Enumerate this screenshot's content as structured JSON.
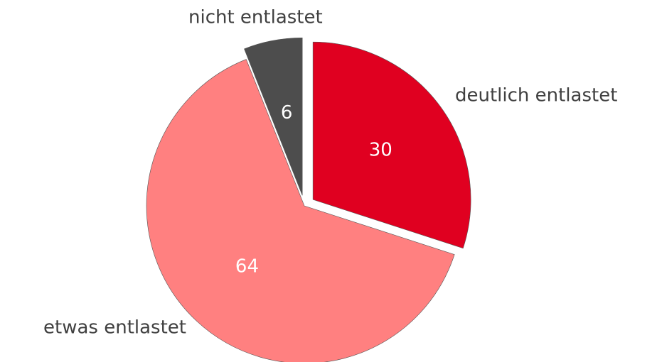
{
  "chart_data": {
    "type": "pie",
    "categories": [
      "deutlich entlastet",
      "etwas entlastet",
      "nicht entlastet"
    ],
    "values": [
      30,
      64,
      6
    ],
    "colors": [
      "#e00020",
      "#ff8080",
      "#4d4d4d"
    ],
    "exploded": [
      true,
      false,
      true
    ]
  }
}
